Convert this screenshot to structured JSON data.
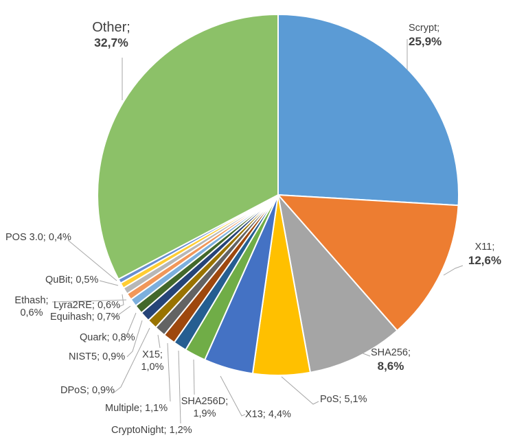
{
  "chart_data": {
    "type": "pie",
    "title": "",
    "legend": "none",
    "label_style": "category name; percentage with comma decimal",
    "colors": {
      "label_text": "#404040",
      "leader_line": "#A6A6A6",
      "background": "#FFFFFF",
      "slice_border": "#FFFFFF"
    },
    "start_angle_deg": 0,
    "direction": "clockwise",
    "total_percent": 99.9,
    "segments": [
      {
        "label": "Scrypt",
        "value": 25.9,
        "label_text": "Scrypt;",
        "value_text": "25,9%",
        "color": "#5B9BD5"
      },
      {
        "label": "X11",
        "value": 12.6,
        "label_text": "X11;",
        "value_text": "12,6%",
        "color": "#ED7D31"
      },
      {
        "label": "SHA256",
        "value": 8.6,
        "label_text": "SHA256;",
        "value_text": "8,6%",
        "color": "#A5A5A5"
      },
      {
        "label": "PoS",
        "value": 5.1,
        "label_text": "PoS;",
        "value_text": "5,1%",
        "color": "#FFC000"
      },
      {
        "label": "X13",
        "value": 4.4,
        "label_text": "X13;",
        "value_text": "4,4%",
        "color": "#4472C4"
      },
      {
        "label": "SHA256D",
        "value": 1.9,
        "label_text": "SHA256D;",
        "value_text": "1,9%",
        "color": "#70AD47"
      },
      {
        "label": "CryptoNight",
        "value": 1.2,
        "label_text": "CryptoNight;",
        "value_text": "1,2%",
        "color": "#255E91"
      },
      {
        "label": "Multiple",
        "value": 1.1,
        "label_text": "Multiple;",
        "value_text": "1,1%",
        "color": "#9E480E"
      },
      {
        "label": "X15",
        "value": 1.0,
        "label_text": "X15;",
        "value_text": "1,0%",
        "color": "#636363"
      },
      {
        "label": "DPoS",
        "value": 0.9,
        "label_text": "DPoS;",
        "value_text": "0,9%",
        "color": "#997300"
      },
      {
        "label": "NIST5",
        "value": 0.9,
        "label_text": "NIST5;",
        "value_text": "0,9%",
        "color": "#264478"
      },
      {
        "label": "Quark",
        "value": 0.8,
        "label_text": "Quark;",
        "value_text": "0,8%",
        "color": "#43682B"
      },
      {
        "label": "Equihash",
        "value": 0.7,
        "label_text": "Equihash;",
        "value_text": "0,7%",
        "color": "#7CAFDD"
      },
      {
        "label": "Ethash",
        "value": 0.6,
        "label_text": "Ethash;",
        "value_text": "0,6%",
        "color": "#F1975A"
      },
      {
        "label": "Lyra2RE",
        "value": 0.6,
        "label_text": "Lyra2RE;",
        "value_text": "0,6%",
        "color": "#B7B7B7"
      },
      {
        "label": "QuBit",
        "value": 0.5,
        "label_text": "QuBit;",
        "value_text": "0,5%",
        "color": "#FFCD33"
      },
      {
        "label": "POS 3.0",
        "value": 0.4,
        "label_text": "POS 3.0;",
        "value_text": "0,4%",
        "color": "#698ED0"
      },
      {
        "label": "Other",
        "value": 32.7,
        "label_text": "Other;",
        "value_text": "32,7%",
        "color": "#8CC168"
      }
    ]
  }
}
